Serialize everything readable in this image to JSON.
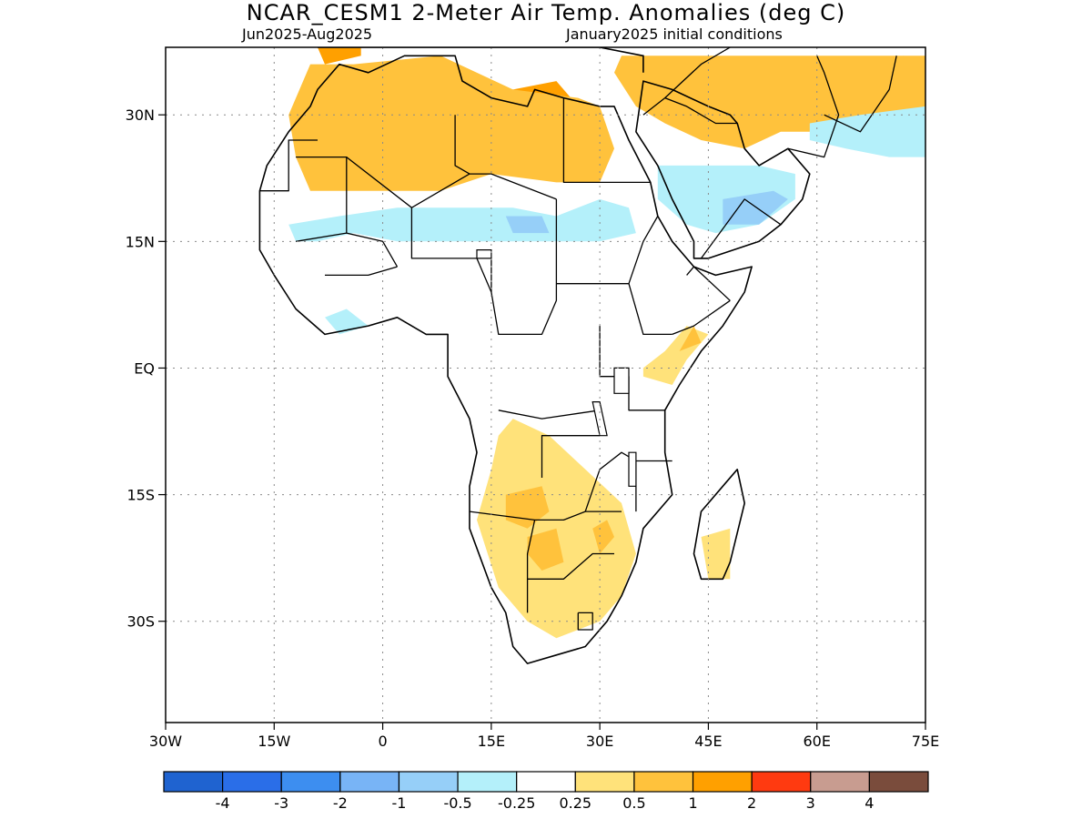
{
  "title": "NCAR_CESM1 2-Meter Air Temp. Anomalies (deg C)",
  "subtitle_left": "Jun2025-Aug2025",
  "subtitle_right": "January2025 initial conditions",
  "map": {
    "lon_range": [
      -30,
      75
    ],
    "lat_range": [
      -42,
      38
    ],
    "lat_ticks": [
      {
        "value": 30,
        "label": "30N"
      },
      {
        "value": 15,
        "label": "15N"
      },
      {
        "value": 0,
        "label": "EQ"
      },
      {
        "value": -15,
        "label": "15S"
      },
      {
        "value": -30,
        "label": "30S"
      }
    ],
    "lon_ticks": [
      {
        "value": -30,
        "label": "30W"
      },
      {
        "value": -15,
        "label": "15W"
      },
      {
        "value": 0,
        "label": "0"
      },
      {
        "value": 15,
        "label": "15E"
      },
      {
        "value": 30,
        "label": "30E"
      },
      {
        "value": 45,
        "label": "45E"
      },
      {
        "value": 60,
        "label": "60E"
      },
      {
        "value": 75,
        "label": "75E"
      }
    ],
    "grid": true
  },
  "colorbar": {
    "colors": [
      "#1f63d0",
      "#2a6ee8",
      "#3d8ef0",
      "#78b4f6",
      "#96cff8",
      "#b4f0fa",
      "#ffffff",
      "#ffe27a",
      "#ffc23c",
      "#ffa000",
      "#ff3a10",
      "#c89c90",
      "#7a4c3c"
    ],
    "labels": [
      "-4",
      "-3",
      "-2",
      "-1",
      "-0.5",
      "-0.25",
      "0.25",
      "0.5",
      "1",
      "2",
      "3",
      "4"
    ]
  },
  "regions": [
    {
      "name": "sahara-warm-strong",
      "color": "#ffa000",
      "ring": [
        [
          -7,
          34
        ],
        [
          0,
          36
        ],
        [
          10,
          34
        ],
        [
          18,
          33
        ],
        [
          24,
          34
        ],
        [
          27,
          31
        ],
        [
          28,
          28
        ],
        [
          24,
          25
        ],
        [
          18,
          24
        ],
        [
          12,
          25
        ],
        [
          6,
          23
        ],
        [
          0,
          23
        ],
        [
          -6,
          24
        ],
        [
          -9,
          27
        ]
      ]
    },
    {
      "name": "sahara-warm",
      "color": "#ffc23c",
      "ring": [
        [
          -10,
          36
        ],
        [
          -4,
          36
        ],
        [
          8,
          37
        ],
        [
          18,
          33
        ],
        [
          27,
          32
        ],
        [
          30,
          31
        ],
        [
          32,
          26
        ],
        [
          30,
          22
        ],
        [
          24,
          22
        ],
        [
          15,
          23
        ],
        [
          8,
          21
        ],
        [
          2,
          21
        ],
        [
          -6,
          21
        ],
        [
          -10,
          21
        ],
        [
          -12,
          25
        ],
        [
          -13,
          30
        ]
      ]
    },
    {
      "name": "mideast-warm-strong",
      "color": "#ffa000",
      "ring": [
        [
          36,
          37
        ],
        [
          44,
          36
        ],
        [
          52,
          35
        ],
        [
          60,
          36
        ],
        [
          68,
          36
        ],
        [
          72,
          37
        ],
        [
          72,
          34
        ],
        [
          66,
          33
        ],
        [
          60,
          31
        ],
        [
          54,
          30
        ],
        [
          48,
          29
        ],
        [
          42,
          31
        ],
        [
          37,
          34
        ]
      ]
    },
    {
      "name": "mideast-warm",
      "color": "#ffc23c",
      "ring": [
        [
          33,
          37
        ],
        [
          44,
          37
        ],
        [
          60,
          37
        ],
        [
          75,
          37
        ],
        [
          75,
          31
        ],
        [
          69,
          30
        ],
        [
          62,
          28
        ],
        [
          55,
          28
        ],
        [
          50,
          26
        ],
        [
          44,
          27
        ],
        [
          39,
          29
        ],
        [
          35,
          31
        ],
        [
          32,
          35
        ]
      ]
    },
    {
      "name": "iberia-warm",
      "color": "#ffa000",
      "ring": [
        [
          -9,
          38
        ],
        [
          -3,
          38
        ],
        [
          -3,
          37
        ],
        [
          -8,
          36
        ]
      ]
    },
    {
      "name": "sahel-cool",
      "color": "#b4f0fa",
      "ring": [
        [
          -13,
          17
        ],
        [
          -6,
          18
        ],
        [
          2,
          19
        ],
        [
          10,
          19
        ],
        [
          18,
          19
        ],
        [
          24,
          18
        ],
        [
          30,
          20
        ],
        [
          34,
          19
        ],
        [
          35,
          16
        ],
        [
          30,
          15
        ],
        [
          24,
          15
        ],
        [
          16,
          15
        ],
        [
          8,
          15
        ],
        [
          2,
          15
        ],
        [
          -4,
          16
        ],
        [
          -9,
          15
        ],
        [
          -12,
          15
        ]
      ]
    },
    {
      "name": "sahel-cool-strong",
      "color": "#96cff8",
      "ring": [
        [
          17,
          18
        ],
        [
          22,
          18
        ],
        [
          23,
          16
        ],
        [
          18,
          16
        ]
      ]
    },
    {
      "name": "arabia-cool",
      "color": "#b4f0fa",
      "ring": [
        [
          38,
          24
        ],
        [
          44,
          24
        ],
        [
          52,
          24
        ],
        [
          57,
          23
        ],
        [
          57,
          20
        ],
        [
          52,
          17
        ],
        [
          46,
          16
        ],
        [
          42,
          17
        ],
        [
          38,
          20
        ]
      ]
    },
    {
      "name": "arabia-cool-strong",
      "color": "#96cff8",
      "ring": [
        [
          47,
          20
        ],
        [
          54,
          21
        ],
        [
          56,
          20
        ],
        [
          52,
          17
        ],
        [
          47,
          17
        ]
      ]
    },
    {
      "name": "iran-cool",
      "color": "#b4f0fa",
      "ring": [
        [
          59,
          29
        ],
        [
          66,
          30
        ],
        [
          75,
          31
        ],
        [
          75,
          25
        ],
        [
          70,
          25
        ],
        [
          64,
          26
        ],
        [
          59,
          27
        ]
      ]
    },
    {
      "name": "west-africa-cool",
      "color": "#b4f0fa",
      "ring": [
        [
          -8,
          6
        ],
        [
          -5,
          7
        ],
        [
          -2,
          5
        ],
        [
          -6,
          4
        ]
      ]
    },
    {
      "name": "southern-africa-warm",
      "color": "#ffe27a",
      "ring": [
        [
          18,
          -6
        ],
        [
          23,
          -8
        ],
        [
          28,
          -12
        ],
        [
          33,
          -16
        ],
        [
          35,
          -22
        ],
        [
          33,
          -27
        ],
        [
          30,
          -30
        ],
        [
          24,
          -32
        ],
        [
          20,
          -30
        ],
        [
          16,
          -26
        ],
        [
          13,
          -18
        ],
        [
          15,
          -12
        ],
        [
          16,
          -8
        ]
      ]
    },
    {
      "name": "southern-africa-warm-core",
      "color": "#ffc23c",
      "ring": [
        [
          17,
          -15
        ],
        [
          22,
          -14
        ],
        [
          23,
          -17
        ],
        [
          20,
          -19
        ],
        [
          17,
          -18
        ]
      ]
    },
    {
      "name": "botswana-warm-core",
      "color": "#ffc23c",
      "ring": [
        [
          20,
          -20
        ],
        [
          24,
          -19
        ],
        [
          25,
          -23
        ],
        [
          22,
          -24
        ],
        [
          20,
          -22
        ]
      ]
    },
    {
      "name": "zimbabwe-warm-core",
      "color": "#ffc23c",
      "ring": [
        [
          29,
          -19
        ],
        [
          31,
          -18
        ],
        [
          32,
          -20
        ],
        [
          30,
          -22
        ]
      ]
    },
    {
      "name": "east-africa-warm",
      "color": "#ffe27a",
      "ring": [
        [
          36,
          -1
        ],
        [
          40,
          -2
        ],
        [
          42,
          1
        ],
        [
          44,
          3
        ],
        [
          45,
          4
        ],
        [
          42,
          5
        ],
        [
          39,
          2
        ],
        [
          36,
          0
        ]
      ]
    },
    {
      "name": "east-africa-warm-core",
      "color": "#ffc23c",
      "ring": [
        [
          41,
          2
        ],
        [
          44,
          3
        ],
        [
          43,
          5
        ]
      ]
    },
    {
      "name": "madagascar-warm",
      "color": "#ffe27a",
      "ring": [
        [
          44,
          -20
        ],
        [
          48,
          -19
        ],
        [
          48,
          -25
        ],
        [
          45,
          -25
        ]
      ]
    }
  ],
  "land_outline": [
    [
      -17,
      21
    ],
    [
      -16,
      24
    ],
    [
      -13,
      28
    ],
    [
      -10,
      31
    ],
    [
      -9,
      33
    ],
    [
      -6,
      36
    ],
    [
      -2,
      35
    ],
    [
      3,
      37
    ],
    [
      10,
      37
    ],
    [
      11,
      34
    ],
    [
      15,
      32
    ],
    [
      20,
      31
    ],
    [
      21,
      33
    ],
    [
      25,
      32
    ],
    [
      30,
      31
    ],
    [
      32,
      31
    ],
    [
      34,
      27
    ],
    [
      37,
      22
    ],
    [
      38,
      18
    ],
    [
      40,
      15
    ],
    [
      43,
      12
    ],
    [
      46,
      11
    ],
    [
      51,
      12
    ],
    [
      50,
      9
    ],
    [
      47,
      5
    ],
    [
      44,
      2
    ],
    [
      41,
      -2
    ],
    [
      39,
      -5
    ],
    [
      39,
      -10
    ],
    [
      40,
      -15
    ],
    [
      36,
      -19
    ],
    [
      35,
      -23
    ],
    [
      33,
      -27
    ],
    [
      31,
      -30
    ],
    [
      28,
      -33
    ],
    [
      24,
      -34
    ],
    [
      20,
      -35
    ],
    [
      18,
      -33
    ],
    [
      17,
      -29
    ],
    [
      15,
      -26
    ],
    [
      12,
      -19
    ],
    [
      12,
      -14
    ],
    [
      13,
      -10
    ],
    [
      12,
      -6
    ],
    [
      9,
      -1
    ],
    [
      9,
      4
    ],
    [
      6,
      4
    ],
    [
      2,
      6
    ],
    [
      -2,
      5
    ],
    [
      -8,
      4
    ],
    [
      -12,
      7
    ],
    [
      -15,
      11
    ],
    [
      -17,
      14
    ],
    [
      -17,
      17
    ]
  ],
  "arabia_outline": [
    [
      35,
      28
    ],
    [
      38,
      24
    ],
    [
      40,
      20
    ],
    [
      43,
      15
    ],
    [
      43,
      13
    ],
    [
      45,
      13
    ],
    [
      52,
      15
    ],
    [
      55,
      17
    ],
    [
      58,
      20
    ],
    [
      59,
      23
    ],
    [
      56,
      26
    ],
    [
      52,
      24
    ],
    [
      50,
      26
    ],
    [
      49,
      29
    ],
    [
      48,
      30
    ],
    [
      45,
      31
    ],
    [
      40,
      33
    ],
    [
      36,
      34
    ]
  ],
  "madagascar_outline": [
    [
      49,
      -12
    ],
    [
      50,
      -16
    ],
    [
      48,
      -23
    ],
    [
      47,
      -25
    ],
    [
      44,
      -25
    ],
    [
      43,
      -22
    ],
    [
      44,
      -17
    ],
    [
      47,
      -14
    ]
  ],
  "med_north_outline": [
    [
      -9,
      38
    ],
    [
      -2,
      38
    ],
    [
      3,
      38
    ],
    [
      12,
      38
    ],
    [
      16,
      38
    ],
    [
      20,
      38
    ],
    [
      24,
      38
    ],
    [
      30,
      38
    ],
    [
      36,
      37
    ],
    [
      36,
      35
    ]
  ],
  "borders": [
    [
      [
        -17,
        21
      ],
      [
        -13,
        21
      ],
      [
        -13,
        27
      ],
      [
        -9,
        27
      ]
    ],
    [
      [
        -12,
        25
      ],
      [
        -5,
        25
      ],
      [
        -5,
        16
      ]
    ],
    [
      [
        -5,
        25
      ],
      [
        4,
        19
      ],
      [
        12,
        23
      ]
    ],
    [
      [
        12,
        23
      ],
      [
        15,
        23
      ],
      [
        24,
        20
      ],
      [
        24,
        20
      ]
    ],
    [
      [
        10,
        30
      ],
      [
        10,
        24
      ],
      [
        12,
        23
      ]
    ],
    [
      [
        25,
        32
      ],
      [
        25,
        22
      ],
      [
        37,
        22
      ]
    ],
    [
      [
        24,
        20
      ],
      [
        24,
        8
      ],
      [
        22,
        4
      ],
      [
        16,
        4
      ],
      [
        15,
        9
      ],
      [
        13,
        13
      ],
      [
        15,
        13
      ]
    ],
    [
      [
        4,
        19
      ],
      [
        4,
        13
      ],
      [
        15,
        13
      ],
      [
        15,
        9
      ]
    ],
    [
      [
        -12,
        15
      ],
      [
        -5,
        16
      ],
      [
        0,
        15
      ],
      [
        2,
        12
      ]
    ],
    [
      [
        -8,
        11
      ],
      [
        -2,
        11
      ],
      [
        2,
        12
      ]
    ],
    [
      [
        24,
        10
      ],
      [
        34,
        10
      ],
      [
        36,
        4
      ],
      [
        40,
        4
      ]
    ],
    [
      [
        34,
        10
      ],
      [
        36,
        15
      ],
      [
        38,
        18
      ]
    ],
    [
      [
        40,
        4
      ],
      [
        43,
        5
      ],
      [
        48,
        8
      ]
    ],
    [
      [
        42,
        11
      ],
      [
        43,
        12
      ],
      [
        48,
        8
      ]
    ],
    [
      [
        30,
        5
      ],
      [
        30,
        -1
      ],
      [
        34,
        -1
      ],
      [
        34,
        -5
      ],
      [
        39,
        -5
      ]
    ],
    [
      [
        16,
        -5
      ],
      [
        22,
        -6
      ],
      [
        30,
        -5
      ]
    ],
    [
      [
        12,
        -17
      ],
      [
        21,
        -18
      ],
      [
        25,
        -18
      ],
      [
        28,
        -17
      ],
      [
        33,
        -17
      ]
    ],
    [
      [
        21,
        -18
      ],
      [
        20,
        -22
      ],
      [
        20,
        -25
      ],
      [
        20,
        -29
      ]
    ],
    [
      [
        20,
        -25
      ],
      [
        25,
        -25
      ],
      [
        29,
        -22
      ],
      [
        32,
        -22
      ]
    ],
    [
      [
        28,
        -17
      ],
      [
        30,
        -12
      ],
      [
        33,
        -10
      ],
      [
        35,
        -11
      ]
    ],
    [
      [
        22,
        -13
      ],
      [
        22,
        -8
      ],
      [
        25,
        -8
      ],
      [
        30,
        -8
      ]
    ],
    [
      [
        35,
        -17
      ],
      [
        35,
        -11
      ],
      [
        40,
        -11
      ]
    ],
    [
      [
        27,
        -29
      ],
      [
        29,
        -29
      ],
      [
        29,
        -31
      ],
      [
        27,
        -31
      ],
      [
        27,
        -29
      ]
    ],
    [
      [
        44,
        13
      ],
      [
        50,
        20
      ],
      [
        55,
        17
      ]
    ],
    [
      [
        36,
        30
      ],
      [
        39,
        32
      ],
      [
        42,
        31
      ],
      [
        46,
        29
      ],
      [
        49,
        29
      ]
    ],
    [
      [
        39,
        32
      ],
      [
        44,
        36
      ],
      [
        48,
        38
      ]
    ],
    [
      [
        56,
        26
      ],
      [
        61,
        25
      ],
      [
        63,
        30
      ],
      [
        61,
        35
      ],
      [
        60,
        37
      ]
    ],
    [
      [
        61,
        30
      ],
      [
        66,
        28
      ],
      [
        70,
        33
      ],
      [
        71,
        37
      ]
    ]
  ],
  "lakes": [
    {
      "name": "lake-victoria",
      "ring": [
        [
          32,
          0
        ],
        [
          34,
          0
        ],
        [
          34,
          -3
        ],
        [
          32,
          -3
        ]
      ]
    },
    {
      "name": "lake-tanganyika",
      "ring": [
        [
          29,
          -4
        ],
        [
          30,
          -4
        ],
        [
          31,
          -8
        ],
        [
          30,
          -8
        ]
      ]
    },
    {
      "name": "lake-malawi",
      "ring": [
        [
          34,
          -10
        ],
        [
          35,
          -10
        ],
        [
          35,
          -14
        ],
        [
          34,
          -14
        ]
      ]
    },
    {
      "name": "lake-chad",
      "ring": [
        [
          13,
          13
        ],
        [
          15,
          13
        ],
        [
          15,
          14
        ],
        [
          13,
          14
        ]
      ]
    }
  ]
}
